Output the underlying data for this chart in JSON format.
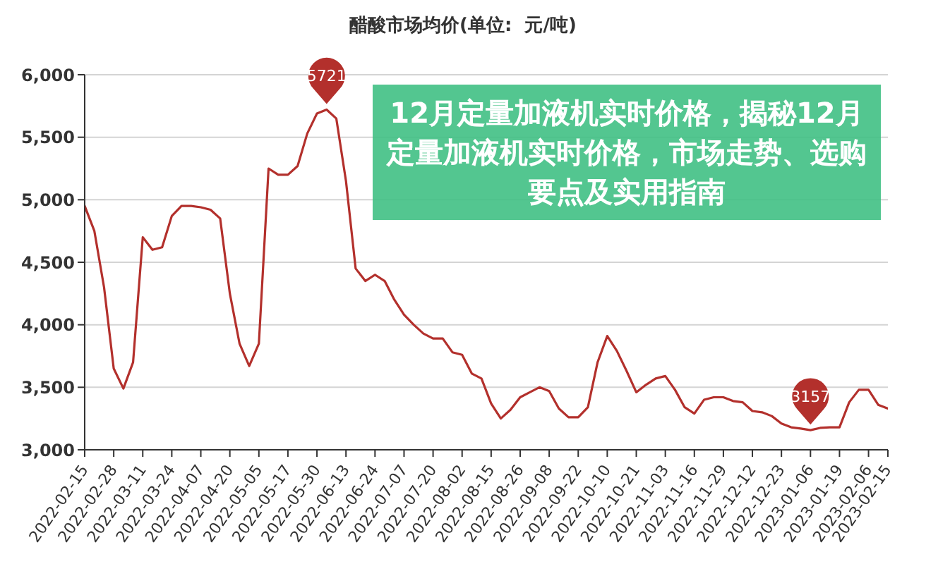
{
  "chart_data": {
    "type": "line",
    "title": "醋酸市场均价(单位:  元/吨)",
    "annotations": [
      "12月定量加液机实时价格，揭秘12月定量加液机实时价格，市场走势、选购要点及实用指南",
      {
        "text": "5721",
        "y": 5721
      },
      {
        "text": "3157",
        "y": 3157
      }
    ],
    "categories": [
      "2022-02-15",
      null,
      null,
      "2022-02-28",
      null,
      null,
      "2022-03-11",
      null,
      null,
      "2022-03-24",
      null,
      null,
      "2022-04-07",
      null,
      null,
      "2022-04-20",
      null,
      null,
      "2022-05-05",
      null,
      null,
      "2022-05-17",
      null,
      null,
      "2022-05-30",
      null,
      null,
      "2022-06-13",
      null,
      null,
      "2022-06-24",
      null,
      null,
      "2022-07-07",
      null,
      null,
      "2022-07-20",
      null,
      null,
      "2022-08-02",
      null,
      null,
      "2022-08-15",
      null,
      null,
      "2022-08-26",
      null,
      null,
      "2022-09-08",
      null,
      null,
      "2022-09-22",
      null,
      null,
      "2022-10-10",
      null,
      null,
      "2022-10-21",
      null,
      null,
      "2022-11-03",
      null,
      null,
      "2022-11-16",
      null,
      null,
      "2022-11-29",
      null,
      null,
      "2022-12-12",
      null,
      null,
      "2022-12-23",
      null,
      null,
      "2023-01-06",
      null,
      null,
      "2023-01-19",
      null,
      null,
      "2023-02-06",
      null,
      "2023-02-15"
    ],
    "series": [
      {
        "color": "#b3302c",
        "values": [
          4950,
          4750,
          4300,
          3650,
          3490,
          3700,
          4700,
          4600,
          4620,
          4870,
          4950,
          4950,
          4940,
          4920,
          4850,
          4250,
          3850,
          3670,
          3850,
          5250,
          5200,
          5200,
          5270,
          5530,
          5690,
          5721,
          5650,
          5150,
          4450,
          4350,
          4400,
          4350,
          4200,
          4080,
          4000,
          3930,
          3890,
          3890,
          3780,
          3760,
          3610,
          3570,
          3370,
          3250,
          3320,
          3420,
          3460,
          3500,
          3470,
          3330,
          3260,
          3260,
          3340,
          3700,
          3910,
          3790,
          3630,
          3460,
          3520,
          3570,
          3590,
          3480,
          3340,
          3290,
          3400,
          3420,
          3420,
          3390,
          3380,
          3310,
          3300,
          3270,
          3210,
          3180,
          3170,
          3157,
          3175,
          3180,
          3180,
          3380,
          3480,
          3480,
          3360,
          3330
        ]
      }
    ],
    "ylim": [
      3000,
      6000
    ],
    "yticks": [
      {
        "value": 3000,
        "label": "3,000"
      },
      {
        "value": 3500,
        "label": "3,500"
      },
      {
        "value": 4000,
        "label": "4,000"
      },
      {
        "value": 4500,
        "label": "4,500"
      },
      {
        "value": 5000,
        "label": "5,000"
      },
      {
        "value": 5500,
        "label": "5,500"
      },
      {
        "value": 6000,
        "label": "6,000"
      }
    ],
    "grid": "y"
  }
}
